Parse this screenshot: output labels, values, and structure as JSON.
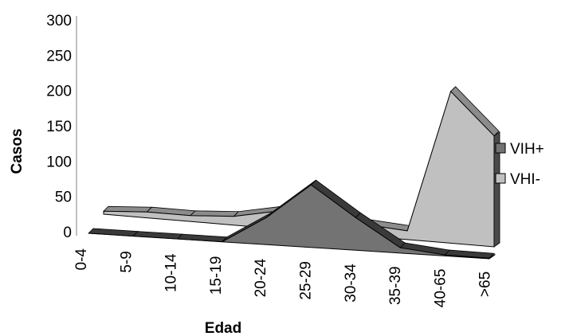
{
  "chart_data": {
    "type": "area",
    "style": "3d-ribbon",
    "categories": [
      "0-4",
      "5-9",
      "10-14",
      "15-19",
      "20-24",
      "25-29",
      "30-34",
      "35-39",
      "40-65",
      ">65"
    ],
    "series": [
      {
        "name": "VIH+",
        "values": [
          0,
          0,
          0,
          0,
          50,
          115,
          60,
          10,
          2,
          1
        ],
        "color": "#737373"
      },
      {
        "name": "VHI-",
        "values": [
          5,
          10,
          10,
          15,
          30,
          20,
          20,
          15,
          260,
          190
        ],
        "color": "#c0c0c0"
      }
    ],
    "xlabel": "Edad",
    "ylabel": "Casos",
    "ylim": [
      0,
      300
    ],
    "yticks": [
      0,
      50,
      100,
      150,
      200,
      250,
      300
    ],
    "grid": false,
    "legend_position": "right"
  }
}
